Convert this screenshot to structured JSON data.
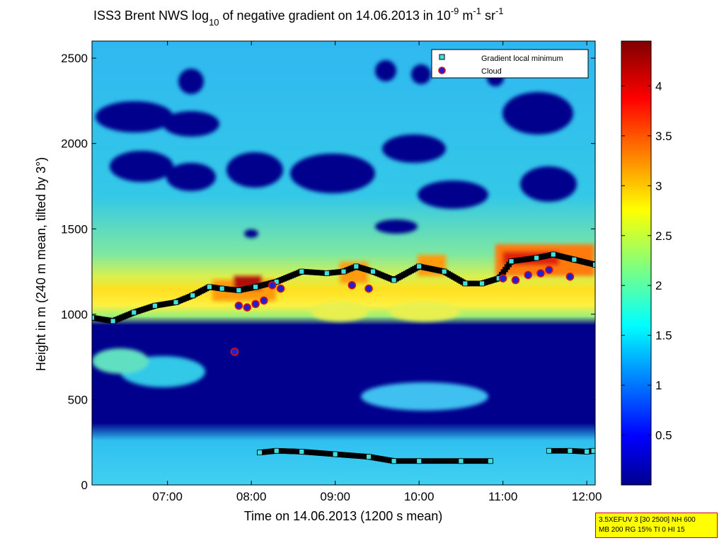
{
  "chart_data": {
    "type": "heatmap",
    "title": {
      "prefix": "ISS3 Brent NWS log",
      "log_base": "10",
      "middle": " of negative gradient on 14.06.2013 in 10",
      "exp1": "-9",
      "unit1": " m",
      "exp2": "-1",
      "unit2": " sr",
      "exp3": "-1"
    },
    "xlabel": "Time on 14.06.2013 (1200 s mean)",
    "ylabel": "Height in m (240 m mean, tilted by 3°)",
    "xlim_hours": [
      6.1,
      12.1
    ],
    "ylim": [
      0,
      2600
    ],
    "x_ticks": [
      {
        "label": "07:00",
        "value": 7
      },
      {
        "label": "08:00",
        "value": 8
      },
      {
        "label": "09:00",
        "value": 9
      },
      {
        "label": "10:00",
        "value": 10
      },
      {
        "label": "11:00",
        "value": 11
      },
      {
        "label": "12:00",
        "value": 12
      }
    ],
    "y_ticks": [
      {
        "label": "0",
        "value": 0
      },
      {
        "label": "500",
        "value": 500
      },
      {
        "label": "1000",
        "value": 1000
      },
      {
        "label": "1500",
        "value": 1500
      },
      {
        "label": "2000",
        "value": 2000
      },
      {
        "label": "2500",
        "value": 2500
      }
    ],
    "colorbar": {
      "range": [
        0,
        4.45
      ],
      "ticks": [
        {
          "label": "0.5",
          "value": 0.5
        },
        {
          "label": "1",
          "value": 1
        },
        {
          "label": "1.5",
          "value": 1.5
        },
        {
          "label": "2",
          "value": 2
        },
        {
          "label": "2.5",
          "value": 2.5
        },
        {
          "label": "3",
          "value": 3
        },
        {
          "label": "3.5",
          "value": 3.5
        },
        {
          "label": "4",
          "value": 4
        }
      ]
    },
    "legend": {
      "position": "top-right",
      "entries": [
        {
          "label": "Gradient local minimum",
          "marker": "square",
          "color": "#40e0e0"
        },
        {
          "label": "Cloud",
          "marker": "circle",
          "color": "#2020d0",
          "edge": "#e01010"
        }
      ]
    },
    "series": [
      {
        "name": "Gradient local minimum (main layer)",
        "x": [
          6.1,
          6.35,
          6.6,
          6.85,
          7.1,
          7.3,
          7.5,
          7.65,
          7.85,
          8.05,
          8.3,
          8.6,
          8.9,
          9.1,
          9.25,
          9.45,
          9.7,
          10.0,
          10.3,
          10.55,
          10.75,
          10.95,
          11.1,
          11.4,
          11.6,
          11.85,
          12.1
        ],
        "y": [
          980,
          960,
          1010,
          1050,
          1070,
          1110,
          1160,
          1150,
          1140,
          1160,
          1190,
          1250,
          1240,
          1250,
          1280,
          1250,
          1200,
          1280,
          1250,
          1180,
          1180,
          1210,
          1310,
          1330,
          1350,
          1320,
          1290
        ]
      },
      {
        "name": "Gradient local minimum (surface layer)",
        "x": [
          8.1,
          8.3,
          8.6,
          9.0,
          9.4,
          9.7,
          10.0,
          10.5,
          10.85
        ],
        "y": [
          190,
          200,
          195,
          180,
          165,
          140,
          140,
          140,
          140
        ]
      },
      {
        "name": "Gradient local minimum (surface layer, late)",
        "x": [
          11.55,
          11.8,
          12.0,
          12.08
        ],
        "y": [
          200,
          200,
          195,
          200
        ]
      },
      {
        "name": "Cloud",
        "x": [
          7.8,
          7.85,
          7.95,
          8.05,
          8.15,
          8.25,
          8.35,
          9.2,
          9.4,
          11.0,
          11.15,
          11.3,
          11.45,
          11.55,
          11.8
        ],
        "y": [
          780,
          1050,
          1040,
          1060,
          1080,
          1170,
          1150,
          1170,
          1150,
          1210,
          1200,
          1230,
          1240,
          1260,
          1220
        ]
      }
    ]
  },
  "info_box": {
    "line1": "3.5XEFUV 3 [30 2500] NH 600",
    "line2": "MB 200 RG 15% TI 0 HI 15"
  }
}
